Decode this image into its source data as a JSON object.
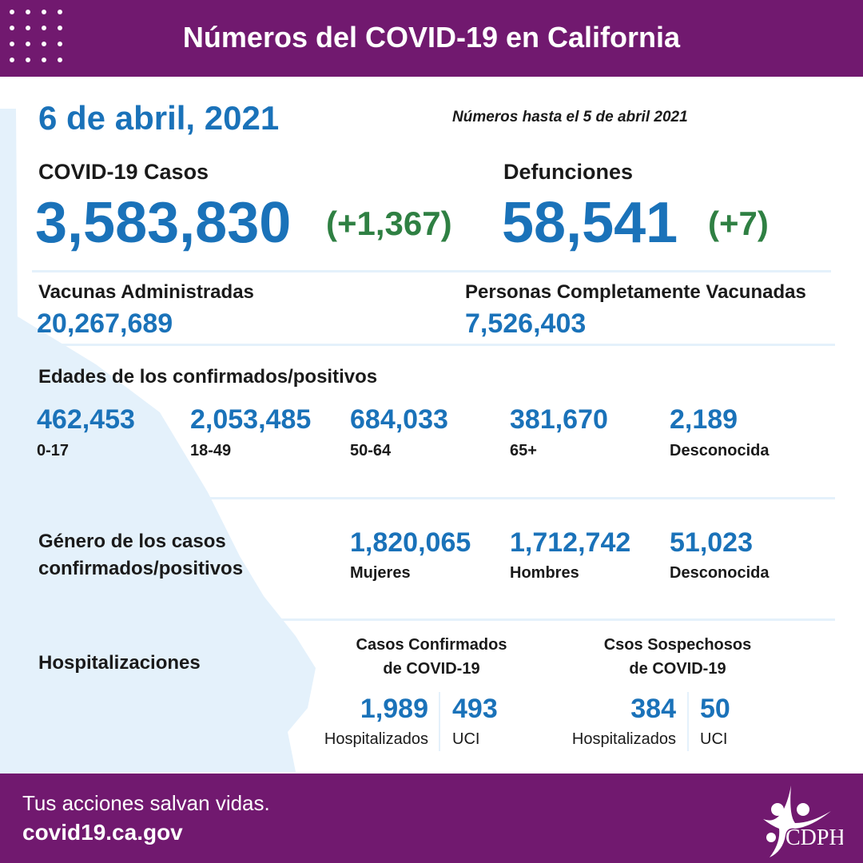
{
  "colors": {
    "purple": "#71196f",
    "blue": "#1a72b9",
    "green": "#2f8043",
    "map": "#e4f1fb"
  },
  "header": {
    "title": "Números del COVID-19 en California"
  },
  "date": "6 de abril, 2021",
  "as_of": "Números hasta el 5 de abril 2021",
  "cases": {
    "label": "COVID-19 Casos",
    "value": "3,583,830",
    "delta": "(+1,367)"
  },
  "deaths": {
    "label": "Defunciones",
    "value": "58,541",
    "delta": "(+7)"
  },
  "vaccines": {
    "label": "Vacunas Administradas",
    "value": "20,267,689"
  },
  "fully_vaccinated": {
    "label": "Personas Completamente Vacunadas",
    "value": "7,526,403"
  },
  "ages": {
    "label": "Edades de los confirmados/positivos",
    "items": [
      {
        "value": "462,453",
        "label": "0-17"
      },
      {
        "value": "2,053,485",
        "label": "18-49"
      },
      {
        "value": "684,033",
        "label": "50-64"
      },
      {
        "value": "381,670",
        "label": "65+"
      },
      {
        "value": "2,189",
        "label": "Desconocida"
      }
    ]
  },
  "gender": {
    "label_line1": "Género de los casos",
    "label_line2": "confirmados/positivos",
    "items": [
      {
        "value": "1,820,065",
        "label": "Mujeres"
      },
      {
        "value": "1,712,742",
        "label": "Hombres"
      },
      {
        "value": "51,023",
        "label": "Desconocida"
      }
    ]
  },
  "hosp": {
    "label": "Hospitalizaciones",
    "confirmed": {
      "title1": "Casos Confirmados",
      "title2": "de COVID-19",
      "hosp_value": "1,989",
      "hosp_label": "Hospitalizados",
      "icu_value": "493",
      "icu_label": "UCI"
    },
    "suspected": {
      "title1": "Csos Sospechosos",
      "title2": "de COVID-19",
      "hosp_value": "384",
      "hosp_label": "Hospitalizados",
      "icu_value": "50",
      "icu_label": "UCI"
    }
  },
  "footer": {
    "tagline": "Tus acciones salvan vidas.",
    "url": "covid19.ca.gov",
    "logo_text": "CDPH"
  }
}
